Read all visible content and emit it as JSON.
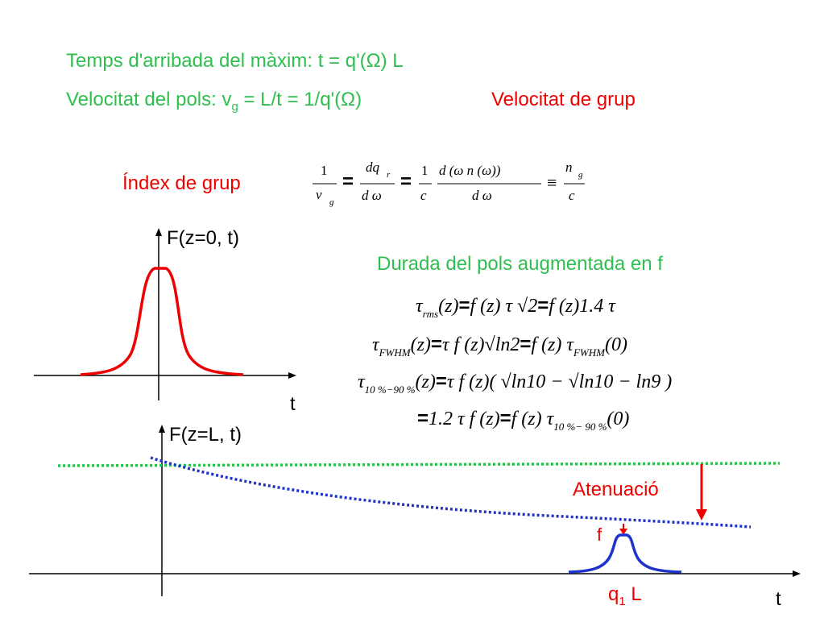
{
  "heading": {
    "line1": "Temps d'arribada del màxim:  t = q'(Ω) L",
    "line2_prefix": "Velocitat del pols: v",
    "line2_sub": "g",
    "line2_suffix": " = L/t = 1/q'(Ω)",
    "group_velocity_label": "Velocitat de grup"
  },
  "group_index": {
    "label": "Índex de grup",
    "frac1_num": "1",
    "frac1_den": "v",
    "frac1_den_sub": "g",
    "eq1": "=",
    "frac2_num": "dq",
    "frac2_num_sub": "r",
    "frac2_den": "d ω",
    "eq2": "=",
    "frac3_num": "1",
    "frac3_den": "c",
    "frac4_num": "d (ω n (ω))",
    "frac4_den": "d ω",
    "equiv": "≡",
    "frac5_num": "n",
    "frac5_num_sub": "g",
    "frac5_den": "c"
  },
  "top_plot": {
    "y_label": "F(z=0, t)",
    "x_label": "t"
  },
  "bottom_plot": {
    "y_label": "F(z=L, t)",
    "x_label": "t",
    "attenuation_label": "Atenuació",
    "f_label": "f",
    "peak_label_main": "q",
    "peak_label_sub": "1",
    "peak_label_suffix": " L"
  },
  "duration": {
    "title": "Durada del pols  augmentada en f",
    "eq_rms": {
      "tau": "τ",
      "sub": "rms",
      "lhs_arg": "(z)",
      "eq": "=",
      "rhs1": "f (z) τ √2",
      "rhs2": "f (z)1.4 τ"
    },
    "eq_fwhm": {
      "tau": "τ",
      "sub": "FWHM",
      "lhs_arg": "(z)",
      "eq": "=",
      "rhs1": "τ f (z)√ln2",
      "rhs2_prefix": "f (z) τ",
      "rhs2_sub": "FWHM",
      "rhs2_suffix": "(0)"
    },
    "eq_1090": {
      "tau": "τ",
      "sub": "10 %−90 %",
      "lhs_arg": "(z)",
      "eq": "=",
      "rhs": "τ f (z)( √ln10 − √ln10 − ln9 )"
    },
    "eq_final": {
      "eq": "=",
      "rhs1": "1.2 τ f (z)",
      "rhs2_prefix": "f (z) τ",
      "rhs2_sub": "10 %− 90 %",
      "rhs2_suffix": "(0)"
    }
  },
  "colors": {
    "green": "#2fbf4f",
    "red": "#ee0000",
    "blue": "#1f33cc",
    "axis": "#000000"
  }
}
